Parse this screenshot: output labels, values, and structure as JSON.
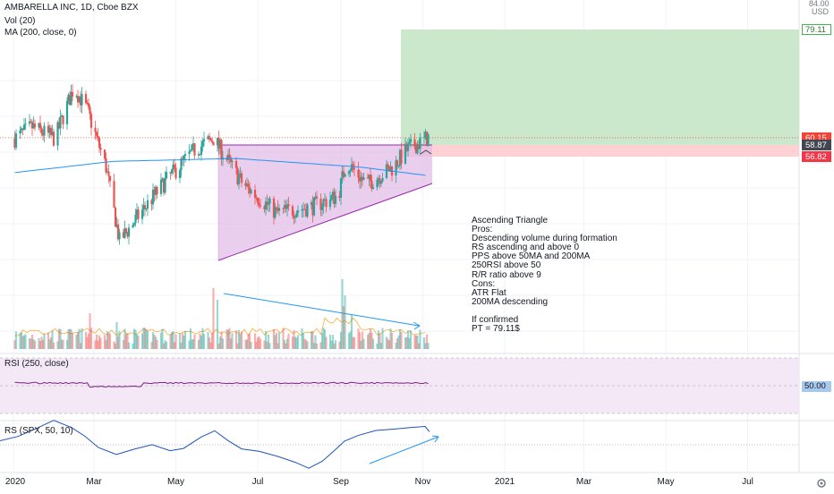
{
  "header": {
    "symbol": "AMBARELLA INC, 1D, Cboe BZX",
    "indicators": [
      "Vol (20)",
      "MA (200, close, 0)"
    ]
  },
  "price_axis": {
    "top_value": "84.00",
    "currency": "USD",
    "tags": [
      {
        "value": "79.11",
        "bg": "#ffffff",
        "fg": "#2e7d32",
        "border": "#4caf50"
      },
      {
        "value": "60.15",
        "bg": "#f44336",
        "fg": "#ffffff",
        "border": "#f44336"
      },
      {
        "value": "58.87",
        "bg": "#434651",
        "fg": "#ffffff",
        "border": "#434651"
      },
      {
        "value": "56.82",
        "bg": "#f23645",
        "fg": "#ffffff",
        "border": "#f23645"
      }
    ]
  },
  "rsi_panel": {
    "title": "RSI (250, close)",
    "level": "50.00"
  },
  "rs_panel": {
    "title": "RS (SPX, 50, 10)"
  },
  "x_axis": {
    "labels": [
      "2020",
      "Mar",
      "May",
      "Jul",
      "Sep",
      "Nov",
      "2021",
      "Mar",
      "May",
      "Jul"
    ],
    "settings_icon": "gear-icon"
  },
  "notes": {
    "lines": [
      "Ascending Triangle",
      "Pros:",
      "Descending volume during formation",
      "RS ascending and above 0",
      "PPS above 50MA and 200MA",
      "250RSI above 50",
      "R/R ratio above 9",
      "Cons:",
      "ATR Flat",
      "200MA descending",
      "",
      "If confirmed",
      "PT = 79.11$"
    ]
  },
  "colors": {
    "up": "#26a69a",
    "down": "#ef5350",
    "ma200": "#2196f3",
    "triangle": "#9c27b0",
    "target_zone": "#c8e6c9",
    "stop_zone": "#ffcdd2",
    "rsi_line": "#7e1f86",
    "rs_line": "#1e53b5",
    "trend_arrow": "#2196f3"
  },
  "chart_data": {
    "type": "candlestick",
    "title": "AMBARELLA INC, 1D, Cboe BZX",
    "x_range": [
      "2020-01",
      "2021-08"
    ],
    "y_range": [
      45,
      84
    ],
    "key_levels": {
      "target": 79.11,
      "last": 60.15,
      "resistance": 58.87,
      "stop": 56.82
    },
    "price_path": [
      {
        "date": "2020-01-02",
        "close": 60
      },
      {
        "date": "2020-01-15",
        "close": 62
      },
      {
        "date": "2020-02-01",
        "close": 60
      },
      {
        "date": "2020-02-15",
        "close": 69
      },
      {
        "date": "2020-02-25",
        "close": 65
      },
      {
        "date": "2020-03-10",
        "close": 55
      },
      {
        "date": "2020-03-20",
        "close": 42
      },
      {
        "date": "2020-04-05",
        "close": 47
      },
      {
        "date": "2020-04-25",
        "close": 53
      },
      {
        "date": "2020-05-15",
        "close": 58
      },
      {
        "date": "2020-05-29",
        "close": 60
      },
      {
        "date": "2020-06-20",
        "close": 52
      },
      {
        "date": "2020-07-15",
        "close": 47
      },
      {
        "date": "2020-08-10",
        "close": 48
      },
      {
        "date": "2020-08-30",
        "close": 50
      },
      {
        "date": "2020-09-05",
        "close": 56
      },
      {
        "date": "2020-09-20",
        "close": 52
      },
      {
        "date": "2020-10-10",
        "close": 55
      },
      {
        "date": "2020-10-20",
        "close": 58
      },
      {
        "date": "2020-11-05",
        "close": 60.15
      }
    ],
    "ma200": [
      {
        "date": "2020-01-01",
        "value": 54
      },
      {
        "date": "2020-03-15",
        "value": 56
      },
      {
        "date": "2020-06-15",
        "value": 56.5
      },
      {
        "date": "2020-09-15",
        "value": 55
      },
      {
        "date": "2020-11-05",
        "value": 53.5
      }
    ],
    "triangle": {
      "resistance": 58.87,
      "support_start": {
        "date": "2020-06-01",
        "value": 45
      },
      "support_end": {
        "date": "2020-11-05",
        "value": 53.5
      }
    }
  }
}
